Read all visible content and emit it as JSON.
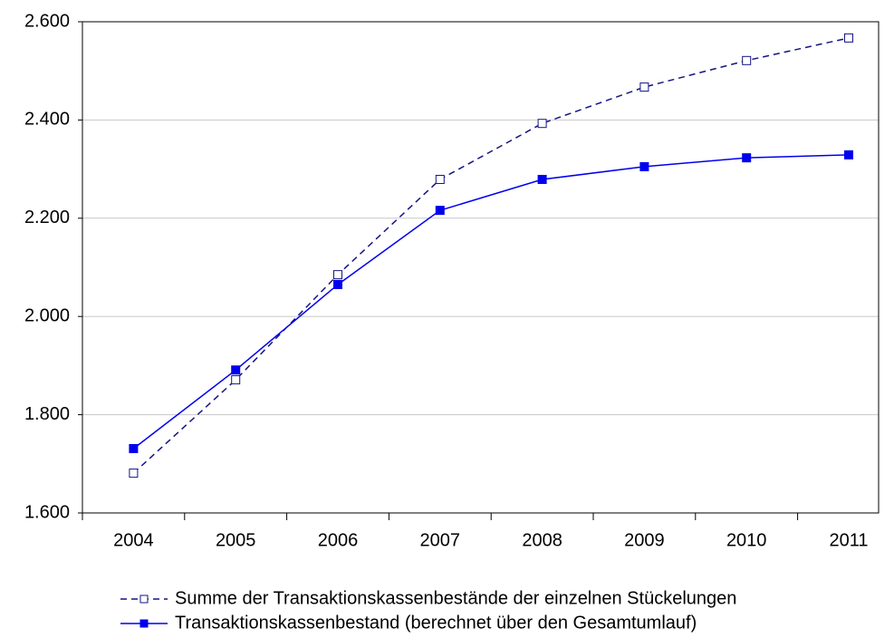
{
  "chart_data": {
    "type": "line",
    "categories": [
      "2004",
      "2005",
      "2006",
      "2007",
      "2008",
      "2009",
      "2010",
      "2011"
    ],
    "series": [
      {
        "name": "Summe der Transaktionskassenbestände der einzelnen Stückelungen",
        "color": "#141482",
        "line_style": "dashed",
        "marker": "open-square",
        "values": [
          1681,
          1871,
          2085,
          2279,
          2393,
          2467,
          2521,
          2567
        ]
      },
      {
        "name": "Transaktionskassenbestand (berechnet über den Gesamtumlauf)",
        "color": "#0000ee",
        "line_style": "solid",
        "marker": "filled-square",
        "values": [
          1731,
          1891,
          2065,
          2216,
          2279,
          2305,
          2323,
          2329
        ]
      }
    ],
    "ylim": [
      1600,
      2600
    ],
    "yticks": [
      {
        "value": 1600,
        "label": "1.600"
      },
      {
        "value": 1800,
        "label": "1.800"
      },
      {
        "value": 2000,
        "label": "2.000"
      },
      {
        "value": 2200,
        "label": "2.200"
      },
      {
        "value": 2400,
        "label": "2.400"
      },
      {
        "value": 2600,
        "label": "2.600"
      }
    ],
    "grid": true
  }
}
